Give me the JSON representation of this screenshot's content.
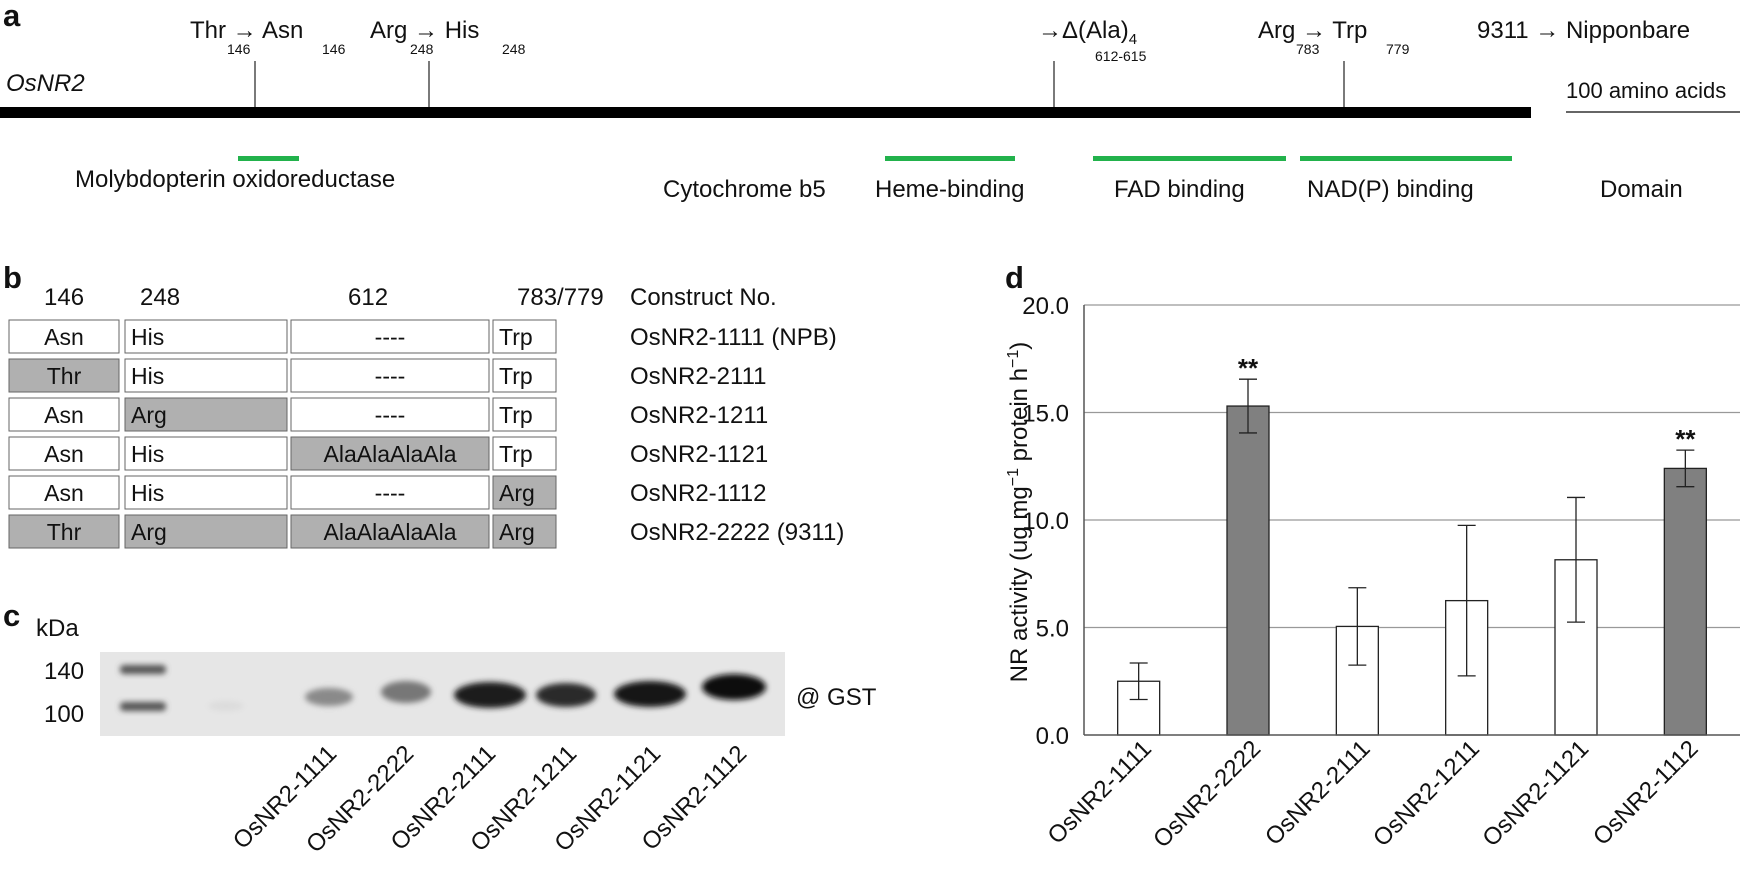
{
  "panels": {
    "a": "a",
    "b": "b",
    "c": "c",
    "d": "d"
  },
  "colors": {
    "domain_green": "#22b24c",
    "shaded": "#b0b0b0",
    "bar_gray": "#808080",
    "bar_white": "#ffffff",
    "axis": "#555555",
    "grid": "#999999"
  },
  "panel_a": {
    "gene": "OsNR2",
    "direction": "9311 → Nipponbare",
    "scale_label": "100 amino acids",
    "domain_header": "Domain",
    "mutations": [
      {
        "from": "Thr",
        "from_pos": "146",
        "arrow": "→",
        "to": "Asn",
        "to_pos": "146"
      },
      {
        "from": "Arg",
        "from_pos": "248",
        "arrow": "→",
        "to": "His",
        "to_pos": "248"
      },
      {
        "arrow": "→",
        "to": "Δ(Ala)",
        "sub": "4",
        "to_pos": "612-615"
      },
      {
        "from": "Arg",
        "from_pos": "783",
        "arrow": "→",
        "to": "Trp",
        "to_pos": "779"
      }
    ],
    "domains": [
      "Molybdopterin oxidoreductase",
      "Cytochrome b5",
      "Heme-binding",
      "FAD binding",
      "NAD(P) binding"
    ]
  },
  "panel_b": {
    "positions": [
      "146",
      "248",
      "612",
      "783/779"
    ],
    "construct_header": "Construct No.",
    "rows": [
      {
        "cells": [
          "Asn",
          "His",
          "----",
          "Trp"
        ],
        "shaded": [
          false,
          false,
          false,
          false
        ],
        "construct": "OsNR2-1111 (NPB)"
      },
      {
        "cells": [
          "Thr",
          "His",
          "----",
          "Trp"
        ],
        "shaded": [
          true,
          false,
          false,
          false
        ],
        "construct": "OsNR2-2111"
      },
      {
        "cells": [
          "Asn",
          "Arg",
          "----",
          "Trp"
        ],
        "shaded": [
          false,
          true,
          false,
          false
        ],
        "construct": "OsNR2-1211"
      },
      {
        "cells": [
          "Asn",
          "His",
          "AlaAlaAlaAla",
          "Trp"
        ],
        "shaded": [
          false,
          false,
          true,
          false
        ],
        "construct": "OsNR2-1121"
      },
      {
        "cells": [
          "Asn",
          "His",
          "----",
          "Arg"
        ],
        "shaded": [
          false,
          false,
          false,
          true
        ],
        "construct": "OsNR2-1112"
      },
      {
        "cells": [
          "Thr",
          "Arg",
          "AlaAlaAlaAla",
          "Arg"
        ],
        "shaded": [
          true,
          true,
          true,
          true
        ],
        "construct": "OsNR2-2222 (9311)"
      }
    ]
  },
  "panel_c": {
    "unit": "kDa",
    "markers": [
      "140",
      "100"
    ],
    "antibody": "@ GST",
    "lanes": [
      "OsNR2-1111",
      "OsNR2-2222",
      "OsNR2-2111",
      "OsNR2-1211",
      "OsNR2-1121",
      "OsNR2-1112"
    ]
  },
  "chart_data": {
    "type": "bar",
    "ylabel_main": "NR activity (ug mg",
    "ylabel_sup1": "−1",
    "ylabel_mid": " protein h",
    "ylabel_sup2": "−1",
    "ylabel_end": ")",
    "ylim": [
      0,
      20
    ],
    "yticks": [
      "0.0",
      "5.0",
      "10.0",
      "15.0",
      "20.0"
    ],
    "grid": true,
    "categories": [
      "OsNR2-1111",
      "OsNR2-2222",
      "OsNR2-2111",
      "OsNR2-1211",
      "OsNR2-1121",
      "OsNR2-1112"
    ],
    "values": [
      2.5,
      15.3,
      5.05,
      6.25,
      8.15,
      12.4
    ],
    "errors": [
      0.85,
      1.25,
      1.8,
      3.5,
      2.9,
      0.85
    ],
    "shaded": [
      false,
      true,
      false,
      false,
      false,
      true
    ],
    "significance": [
      "",
      "**",
      "",
      "",
      "",
      "**"
    ]
  }
}
